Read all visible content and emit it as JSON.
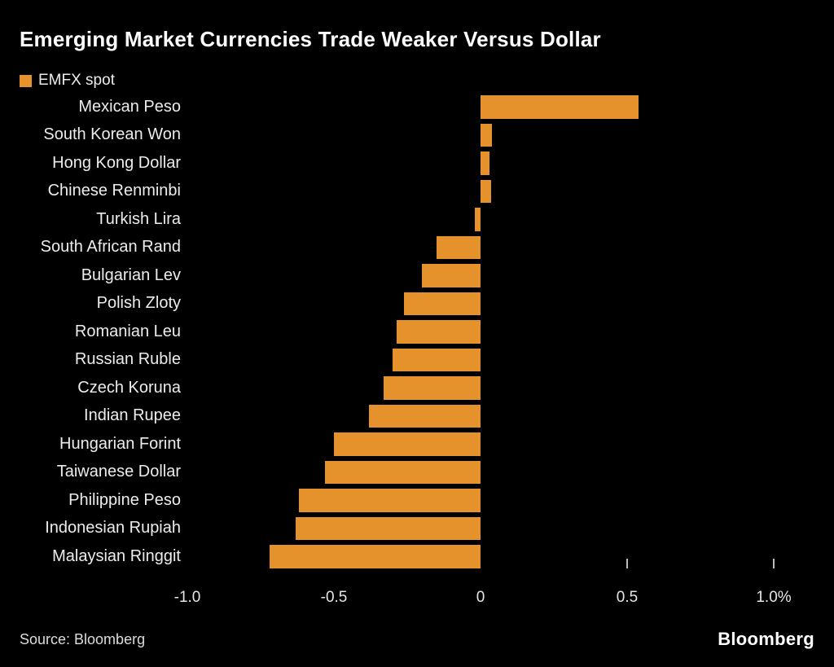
{
  "title": "Emerging Market Currencies Trade Weaker Versus Dollar",
  "legend": {
    "label": "EMFX spot",
    "color": "#E5912C"
  },
  "source": "Source: Bloomberg",
  "brand": "Bloomberg",
  "colors": {
    "background": "#000000",
    "bar": "#E5912C",
    "text": "#ECECEC",
    "title": "#FFFFFF"
  },
  "chart_data": {
    "type": "bar",
    "orientation": "horizontal",
    "title": "Emerging Market Currencies Trade Weaker Versus Dollar",
    "series_name": "EMFX spot",
    "categories": [
      "Mexican Peso",
      "South Korean Won",
      "Hong Kong Dollar",
      "Chinese Renminbi",
      "Turkish Lira",
      "South African Rand",
      "Bulgarian Lev",
      "Polish Zloty",
      "Romanian Leu",
      "Russian Ruble",
      "Czech Koruna",
      "Indian Rupee",
      "Hungarian Forint",
      "Taiwanese Dollar",
      "Philippine Peso",
      "Indonesian Rupiah",
      "Malaysian Ringgit"
    ],
    "values": [
      0.54,
      0.04,
      0.03,
      0.035,
      -0.02,
      -0.15,
      -0.2,
      -0.26,
      -0.285,
      -0.3,
      -0.33,
      -0.38,
      -0.5,
      -0.53,
      -0.62,
      -0.63,
      -0.72
    ],
    "unit": "%",
    "xlim": [
      -1.0,
      1.0
    ],
    "xticks": [
      -1.0,
      -0.5,
      0,
      0.5,
      1.0
    ],
    "xtick_labels": [
      "-1.0",
      "-0.5",
      "0",
      "0.5",
      "1.0%"
    ],
    "tick_marks": [
      0.5,
      1.0
    ],
    "bar_color": "#E5912C",
    "grid": false,
    "legend_position": "top-left"
  }
}
